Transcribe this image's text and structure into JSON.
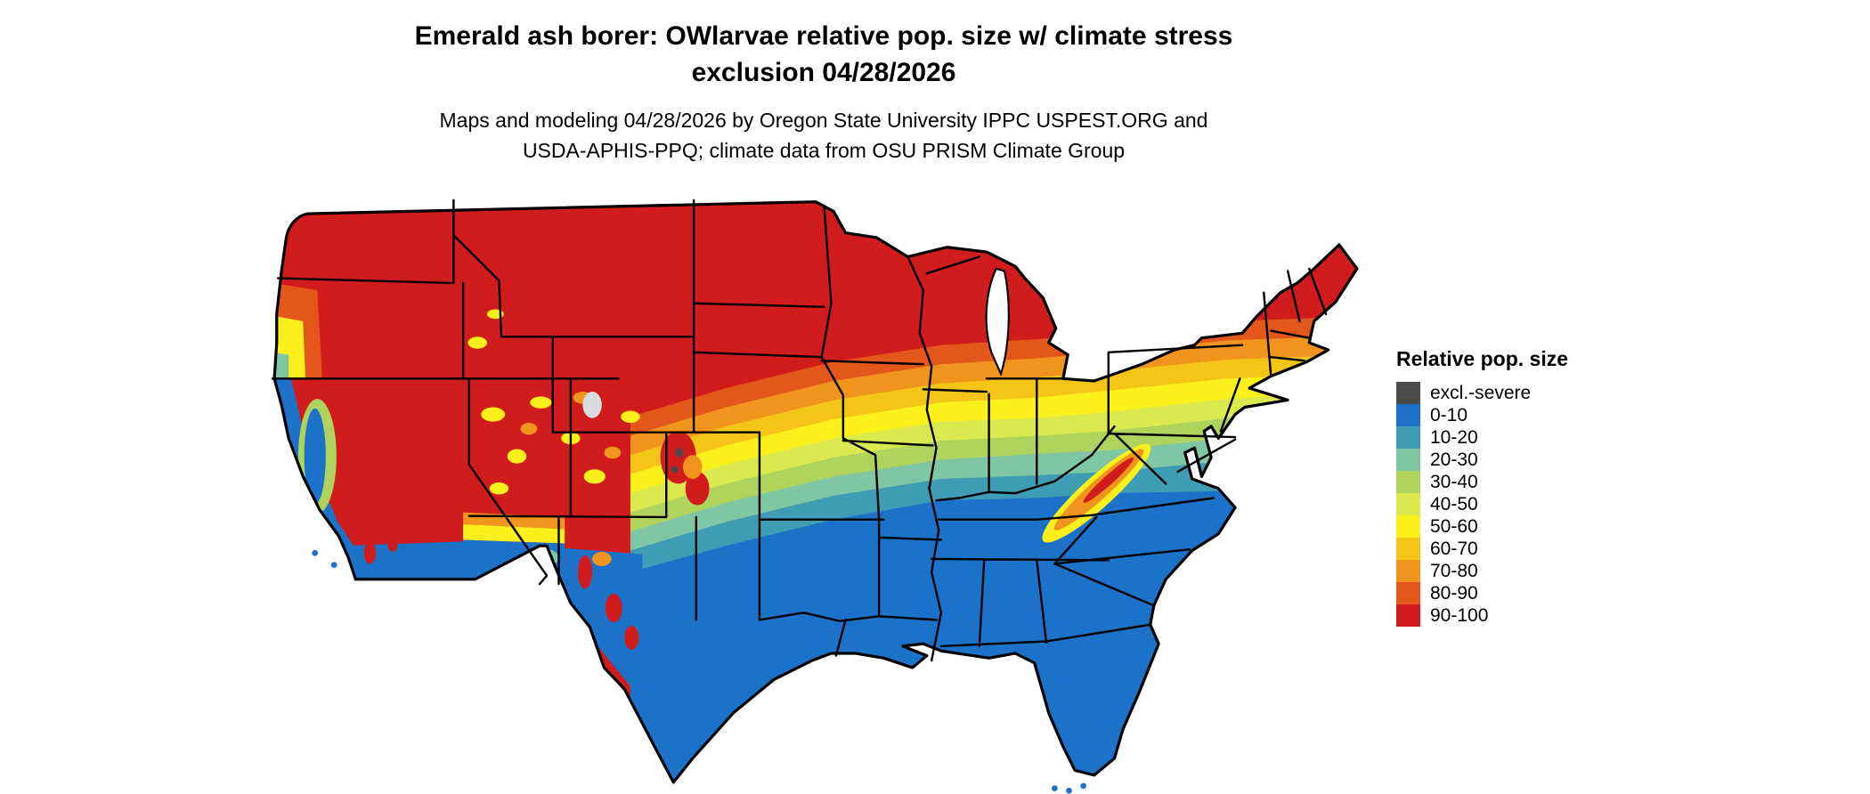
{
  "title": {
    "line1": "Emerald ash borer: OWlarvae relative pop. size w/ climate stress",
    "line2": "exclusion 04/28/2026"
  },
  "subtitle": {
    "line1": "Maps and modeling 04/28/2026 by Oregon State University IPPC USPEST.ORG and",
    "line2": "USDA-APHIS-PPQ; climate data from OSU PRISM Climate Group"
  },
  "map": {
    "region": "Contiguous United States",
    "kind": "raster choropleth of relative population size with state boundaries"
  },
  "legend": {
    "title": "Relative pop. size",
    "entries": [
      {
        "label": "excl.-severe",
        "color": "#4a4a4a"
      },
      {
        "label": "0-10",
        "color": "#1c72c8"
      },
      {
        "label": "10-20",
        "color": "#3e9cb4"
      },
      {
        "label": "20-30",
        "color": "#7fc6a4"
      },
      {
        "label": "30-40",
        "color": "#afd35c"
      },
      {
        "label": "40-50",
        "color": "#d9e94e"
      },
      {
        "label": "50-60",
        "color": "#fbf01c"
      },
      {
        "label": "60-70",
        "color": "#f4c417"
      },
      {
        "label": "70-80",
        "color": "#f0941d"
      },
      {
        "label": "80-90",
        "color": "#e4571b"
      },
      {
        "label": "90-100",
        "color": "#d01c1c"
      }
    ]
  }
}
